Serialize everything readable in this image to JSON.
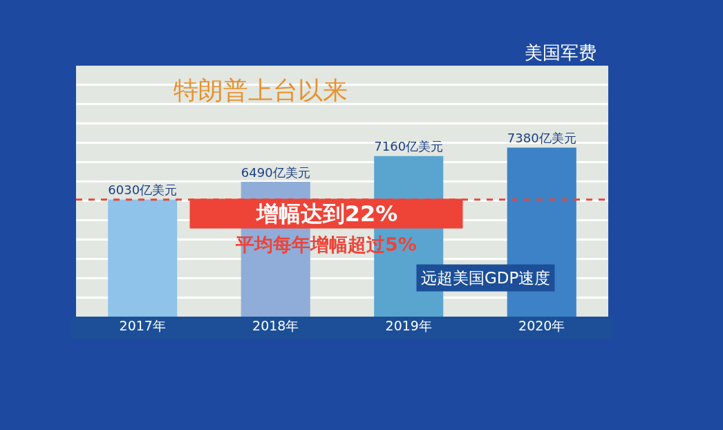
{
  "chart_data": {
    "type": "bar",
    "title": "特朗普上台以来",
    "categories": [
      "2017年",
      "2018年",
      "2019年",
      "2020年"
    ],
    "values": [
      6030,
      6490,
      7160,
      7380
    ],
    "colors": [
      "#8fc3ea",
      "#8fadd8",
      "#5aa5d0",
      "#3d82c6"
    ],
    "value_labels": [
      "6030亿美元",
      "6490亿美元",
      "7160亿美元",
      "7380亿美元"
    ],
    "ylim": [
      3000,
      9500
    ],
    "yticks": [
      {
        "value": 3500,
        "label": null
      },
      {
        "value": 4000,
        "label": null
      },
      {
        "value": 4500,
        "label": null
      },
      {
        "value": 5000,
        "label": null
      },
      {
        "value": 5500,
        "label": null
      },
      {
        "value": 6000,
        "label": null
      },
      {
        "value": 6500,
        "label": null
      },
      {
        "value": 7000,
        "label": null
      },
      {
        "value": 7500,
        "label": null
      },
      {
        "value": 8000,
        "label": null
      },
      {
        "value": 8500,
        "label": null
      },
      {
        "value": 9000,
        "label": null
      }
    ],
    "grid": "y",
    "tick_labels": "x",
    "ref_lines": [
      {
        "axis": "y",
        "value": 6030,
        "color": "#e8463c",
        "line_style": "dashed"
      }
    ],
    "annotations": [
      "美国军费",
      "增幅达到22%",
      "平均每年增幅超过5%",
      "远超美国GDP速度"
    ]
  }
}
